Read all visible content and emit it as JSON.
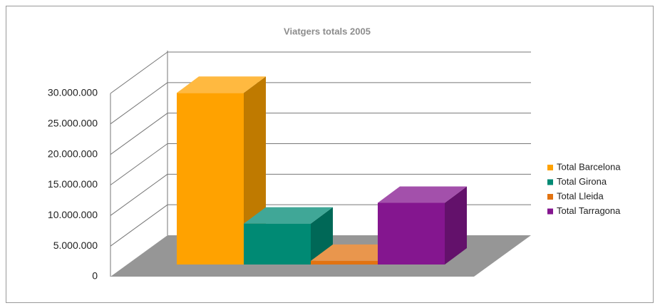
{
  "chart_data": {
    "type": "bar3d",
    "title": "Viatgers totals 2005",
    "series": [
      {
        "name": "Total Barcelona",
        "color": "#ffa200",
        "values": [
          28100000
        ]
      },
      {
        "name": "Total Girona",
        "color": "#008a74",
        "values": [
          6700000
        ]
      },
      {
        "name": "Total Lleida",
        "color": "#e27311",
        "values": [
          600000
        ]
      },
      {
        "name": "Total Tarragona",
        "color": "#84168f",
        "values": [
          10100000
        ]
      }
    ],
    "ylim": [
      0,
      30000000
    ],
    "yticks": [
      0,
      {
        "value": 5000000,
        "label": "5.000.000"
      },
      {
        "value": 10000000,
        "label": "10.000.000"
      },
      {
        "value": 15000000,
        "label": "15.000.000"
      },
      {
        "value": 20000000,
        "label": "20.000.000"
      },
      {
        "value": 25000000,
        "label": "25.000.000"
      },
      {
        "value": 30000000,
        "label": "30.000.000"
      }
    ],
    "grid": true,
    "legend": "right"
  }
}
